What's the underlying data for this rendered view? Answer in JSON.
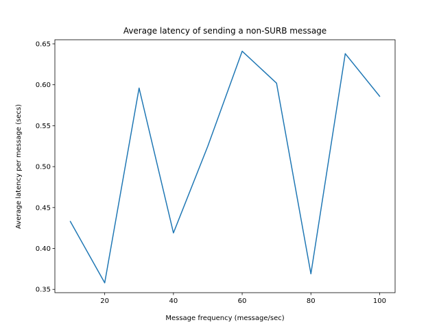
{
  "chart_data": {
    "type": "line",
    "title": "Average latency of sending a non-SURB message",
    "xlabel": "Message frequency (message/sec)",
    "ylabel": "Average latency per message (secs)",
    "x": [
      10,
      20,
      30,
      40,
      50,
      60,
      70,
      80,
      90,
      100
    ],
    "series": [
      {
        "values": [
          0.433,
          0.358,
          0.596,
          0.419,
          0.525,
          0.641,
          0.602,
          0.369,
          0.638,
          0.586
        ],
        "color": "#1f77b4"
      }
    ],
    "xlim": [
      5.5,
      104.5
    ],
    "ylim": [
      0.346,
      0.655
    ],
    "xticks": [
      20,
      40,
      60,
      80,
      100
    ],
    "xtick_labels": [
      "20",
      "40",
      "60",
      "80",
      "100"
    ],
    "yticks": [
      0.35,
      0.4,
      0.45,
      0.5,
      0.55,
      0.6,
      0.65
    ],
    "ytick_labels": [
      "0.35",
      "0.40",
      "0.45",
      "0.50",
      "0.55",
      "0.60",
      "0.65"
    ],
    "grid": false,
    "legend": "none"
  }
}
